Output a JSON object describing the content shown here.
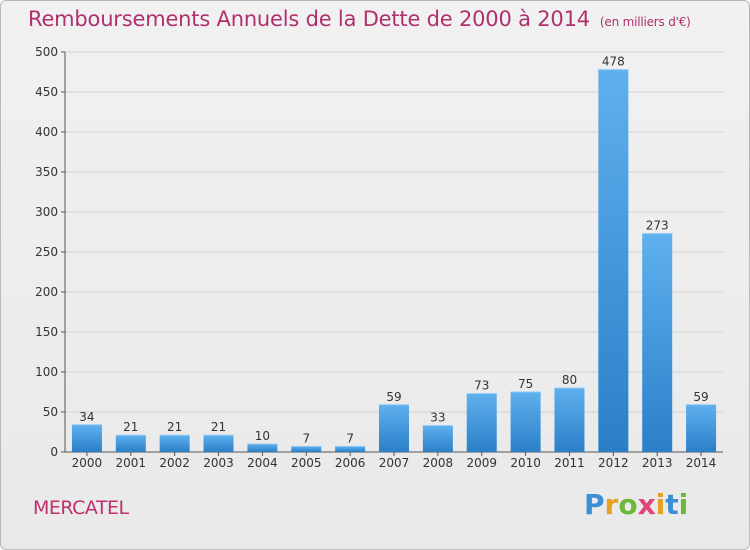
{
  "title": "Remboursements Annuels de la Dette de 2000 à 2014",
  "title_unit": "(en milliers d'€)",
  "place_name": "MERCATEL",
  "brand": {
    "letters": [
      "P",
      "r",
      "o",
      "x",
      "i",
      "t",
      "i"
    ],
    "colors": [
      "#3a8fd6",
      "#e8a020",
      "#6cb83a",
      "#e0447a",
      "#e8a020",
      "#3a8fd6",
      "#6cb83a"
    ]
  },
  "colors": {
    "bar_top": "#5fb0ee",
    "bar_bottom": "#2a7fc7",
    "title": "#b0306f",
    "grid": "#d2d2d2"
  },
  "chart_data": {
    "type": "bar",
    "categories": [
      "2000",
      "2001",
      "2002",
      "2003",
      "2004",
      "2005",
      "2006",
      "2007",
      "2008",
      "2009",
      "2010",
      "2011",
      "2012",
      "2013",
      "2014"
    ],
    "values": [
      34,
      21,
      21,
      21,
      10,
      7,
      7,
      59,
      33,
      73,
      75,
      80,
      478,
      273,
      59
    ],
    "ylim": [
      0,
      500
    ],
    "yticks": [
      0,
      50,
      100,
      150,
      200,
      250,
      300,
      350,
      400,
      450,
      500
    ],
    "grid": true,
    "title": "Remboursements Annuels de la Dette de 2000 à 2014",
    "xlabel": "",
    "ylabel": ""
  }
}
